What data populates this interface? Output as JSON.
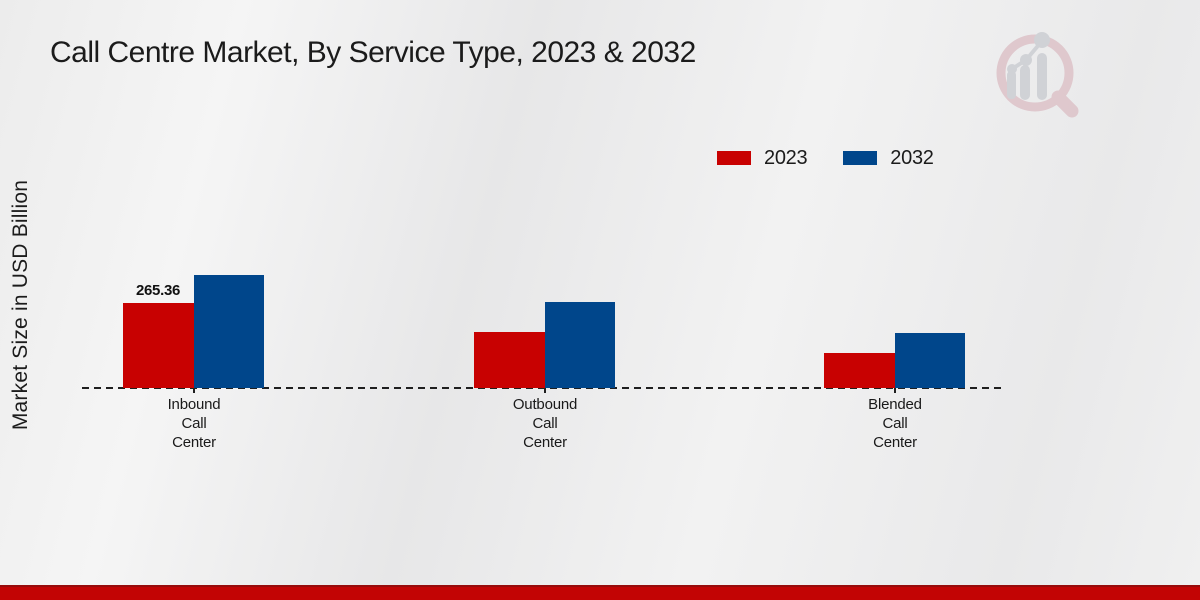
{
  "header": {
    "title": "Call Centre Market, By Service Type, 2023 & 2032"
  },
  "axis": {
    "y_label": "Market Size in USD Billion"
  },
  "legend": {
    "items": [
      {
        "label": "2023",
        "color": "#c80101"
      },
      {
        "label": "2032",
        "color": "#00468b"
      }
    ]
  },
  "watermark": {
    "name": "market-research-magnifier-logo"
  },
  "footer": {
    "bar_color": "#c20404"
  },
  "chart_data": {
    "type": "bar",
    "title": "Call Centre Market, By Service Type, 2023 & 2032",
    "xlabel": "",
    "ylabel": "Market Size in USD Billion",
    "categories": [
      "Inbound Call Center",
      "Outbound Call Center",
      "Blended Call Center"
    ],
    "category_label_lines": [
      [
        "Inbound",
        "Call",
        "Center"
      ],
      [
        "Outbound",
        "Call",
        "Center"
      ],
      [
        "Blended",
        "Call",
        "Center"
      ]
    ],
    "series": [
      {
        "name": "2023",
        "color": "#c80101",
        "values": [
          265.36,
          174.8,
          109.3
        ],
        "data_labels": [
          "265.36",
          "",
          ""
        ]
      },
      {
        "name": "2032",
        "color": "#00468b",
        "values": [
          352.9,
          268.4,
          171.7
        ],
        "data_labels": [
          "",
          "",
          ""
        ]
      }
    ],
    "ylim": [
      0,
      400
    ],
    "grid": false,
    "legend_position": "top-right",
    "baseline_style": "dashed-black",
    "note_only_labeled_value": "265.36"
  }
}
